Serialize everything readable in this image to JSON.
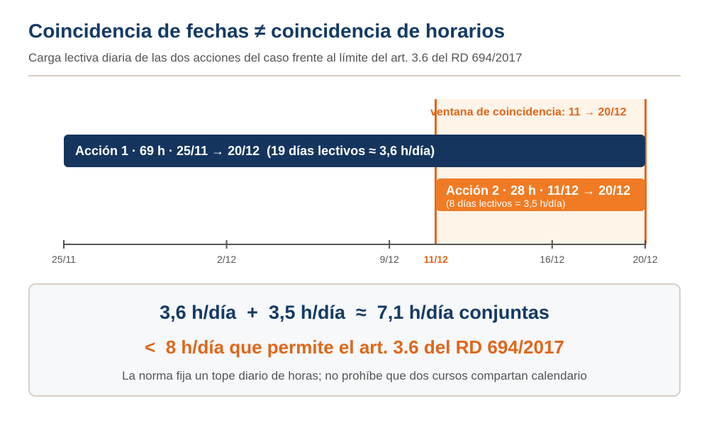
{
  "header": {
    "title": "Coincidencia de fechas ≠ coincidencia de horarios",
    "subtitle": "Carga lectiva diaria de las dos acciones del caso frente al límite del art. 3.6 del RD 694/2017"
  },
  "timeline": {
    "window_label": "ventana de coincidencia: 11 → 20/12",
    "actions": [
      {
        "label": "Acción 1 · 69 h · 25/11 → 20/12  (19 días lectivos ≈ 3,6 h/día)",
        "start": "25/11",
        "end": "20/12",
        "hours": 69,
        "days": 19,
        "hours_per_day": 3.6
      },
      {
        "label": "Acción 2 · 28 h · 11/12 → 20/12",
        "sublabel": "(8 días lectivos = 3,5 h/día)",
        "start": "11/12",
        "end": "20/12",
        "hours": 28,
        "days": 8,
        "hours_per_day": 3.5
      }
    ],
    "ticks": [
      {
        "label": "25/11",
        "day": 0,
        "highlight": false
      },
      {
        "label": "2/12",
        "day": 7,
        "highlight": false
      },
      {
        "label": "9/12",
        "day": 14,
        "highlight": false
      },
      {
        "label": "11/12",
        "day": 16,
        "highlight": true
      },
      {
        "label": "16/12",
        "day": 21,
        "highlight": false
      },
      {
        "label": "20/12",
        "day": 25,
        "highlight": false
      }
    ]
  },
  "summary": {
    "line1": "3,6 h/día  +  3,5 h/día  ≈  7,1 h/día conjuntas",
    "line2": "<  8 h/día que permite el art. 3.6 del RD 694/2017",
    "note": "La norma fija un tope diario de horas; no prohíbe que dos cursos compartan calendario"
  },
  "colors": {
    "navy": "#15355f",
    "orange": "#f07b24",
    "orange_text": "#e0661a",
    "window_fill": "#fff4e8",
    "axis": "#555555"
  }
}
